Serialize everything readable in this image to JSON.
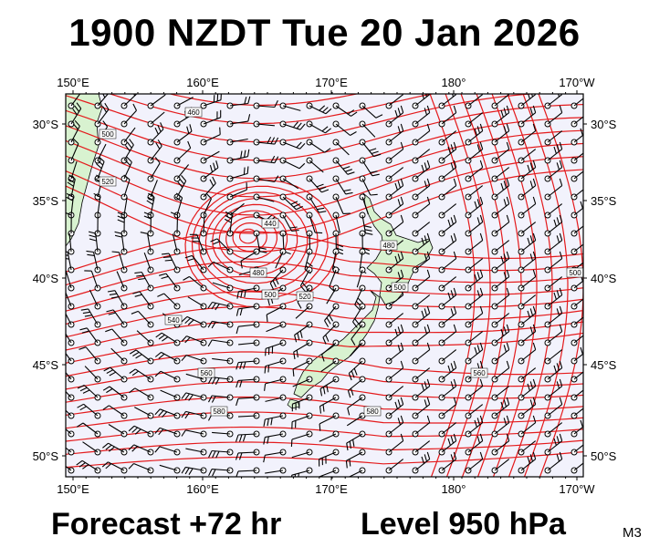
{
  "title": "1900 NZDT Tue 20 Jan 2026",
  "footer": {
    "forecast": "Forecast +72 hr",
    "level": "Level 950 hPa",
    "code": "M3"
  },
  "axes": {
    "lon_labels": [
      "150°E",
      "160°E",
      "170°E",
      "180°",
      "170°W"
    ],
    "lat_labels": [
      "30°S",
      "35°S",
      "40°S",
      "45°S",
      "50°S"
    ]
  },
  "contour_labels": [
    "460",
    "500",
    "520",
    "440",
    "480",
    "500",
    "520",
    "540",
    "560",
    "580",
    "580",
    "560",
    "480",
    "500",
    "500"
  ],
  "colors": {
    "contour": "#e41a1c",
    "land": "#d8f2d0",
    "sea": "#f2f2fc",
    "barb": "#000000"
  }
}
